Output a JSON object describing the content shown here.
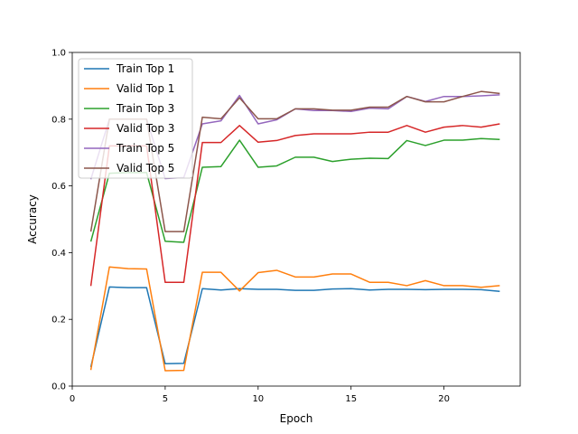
{
  "chart_data": {
    "type": "line",
    "title": "",
    "xlabel": "Epoch",
    "ylabel": "Accuracy",
    "xlim": [
      0,
      24.1
    ],
    "ylim": [
      0.0,
      1.0
    ],
    "xticks": [
      0,
      5,
      10,
      15,
      20
    ],
    "xtick_labels": [
      "0",
      "5",
      "10",
      "15",
      "20"
    ],
    "yticks": [
      0.0,
      0.2,
      0.4,
      0.6,
      0.8,
      1.0
    ],
    "ytick_labels": [
      "0.0",
      "0.2",
      "0.4",
      "0.6",
      "0.8",
      "1.0"
    ],
    "grid": false,
    "legend_position": "top-left",
    "x": [
      1,
      2,
      3,
      4,
      5,
      6,
      7,
      8,
      9,
      10,
      11,
      12,
      13,
      14,
      15,
      16,
      17,
      18,
      19,
      20,
      21,
      22,
      23
    ],
    "series": [
      {
        "name": "Train Top 1",
        "color": "#1f77b4",
        "values": [
          0.057,
          0.297,
          0.295,
          0.295,
          0.067,
          0.068,
          0.292,
          0.288,
          0.292,
          0.29,
          0.29,
          0.287,
          0.287,
          0.291,
          0.292,
          0.288,
          0.29,
          0.29,
          0.289,
          0.29,
          0.29,
          0.289,
          0.284
        ]
      },
      {
        "name": "Valid Top 1",
        "color": "#ff7f0e",
        "values": [
          0.048,
          0.357,
          0.352,
          0.351,
          0.046,
          0.047,
          0.341,
          0.341,
          0.285,
          0.34,
          0.347,
          0.327,
          0.327,
          0.336,
          0.336,
          0.311,
          0.311,
          0.301,
          0.316,
          0.301,
          0.301,
          0.296,
          0.301
        ]
      },
      {
        "name": "Train Top 3",
        "color": "#2ca02c",
        "values": [
          0.433,
          0.638,
          0.64,
          0.64,
          0.434,
          0.431,
          0.656,
          0.658,
          0.737,
          0.656,
          0.66,
          0.686,
          0.686,
          0.673,
          0.68,
          0.683,
          0.682,
          0.736,
          0.721,
          0.737,
          0.737,
          0.742,
          0.739
        ]
      },
      {
        "name": "Valid Top 3",
        "color": "#d62728",
        "values": [
          0.3,
          0.72,
          0.72,
          0.72,
          0.311,
          0.311,
          0.73,
          0.73,
          0.781,
          0.731,
          0.736,
          0.751,
          0.756,
          0.756,
          0.756,
          0.761,
          0.761,
          0.781,
          0.761,
          0.776,
          0.781,
          0.776,
          0.786
        ]
      },
      {
        "name": "Train Top 5",
        "color": "#9467bd",
        "values": [
          0.62,
          0.8,
          0.8,
          0.8,
          0.622,
          0.625,
          0.786,
          0.795,
          0.871,
          0.786,
          0.798,
          0.831,
          0.826,
          0.826,
          0.823,
          0.833,
          0.831,
          0.868,
          0.853,
          0.868,
          0.868,
          0.87,
          0.873
        ]
      },
      {
        "name": "Valid Top 5",
        "color": "#8c564b",
        "values": [
          0.463,
          0.8,
          0.8,
          0.8,
          0.463,
          0.463,
          0.806,
          0.801,
          0.864,
          0.801,
          0.801,
          0.831,
          0.831,
          0.827,
          0.827,
          0.836,
          0.836,
          0.868,
          0.852,
          0.852,
          0.868,
          0.883,
          0.877
        ]
      }
    ]
  }
}
